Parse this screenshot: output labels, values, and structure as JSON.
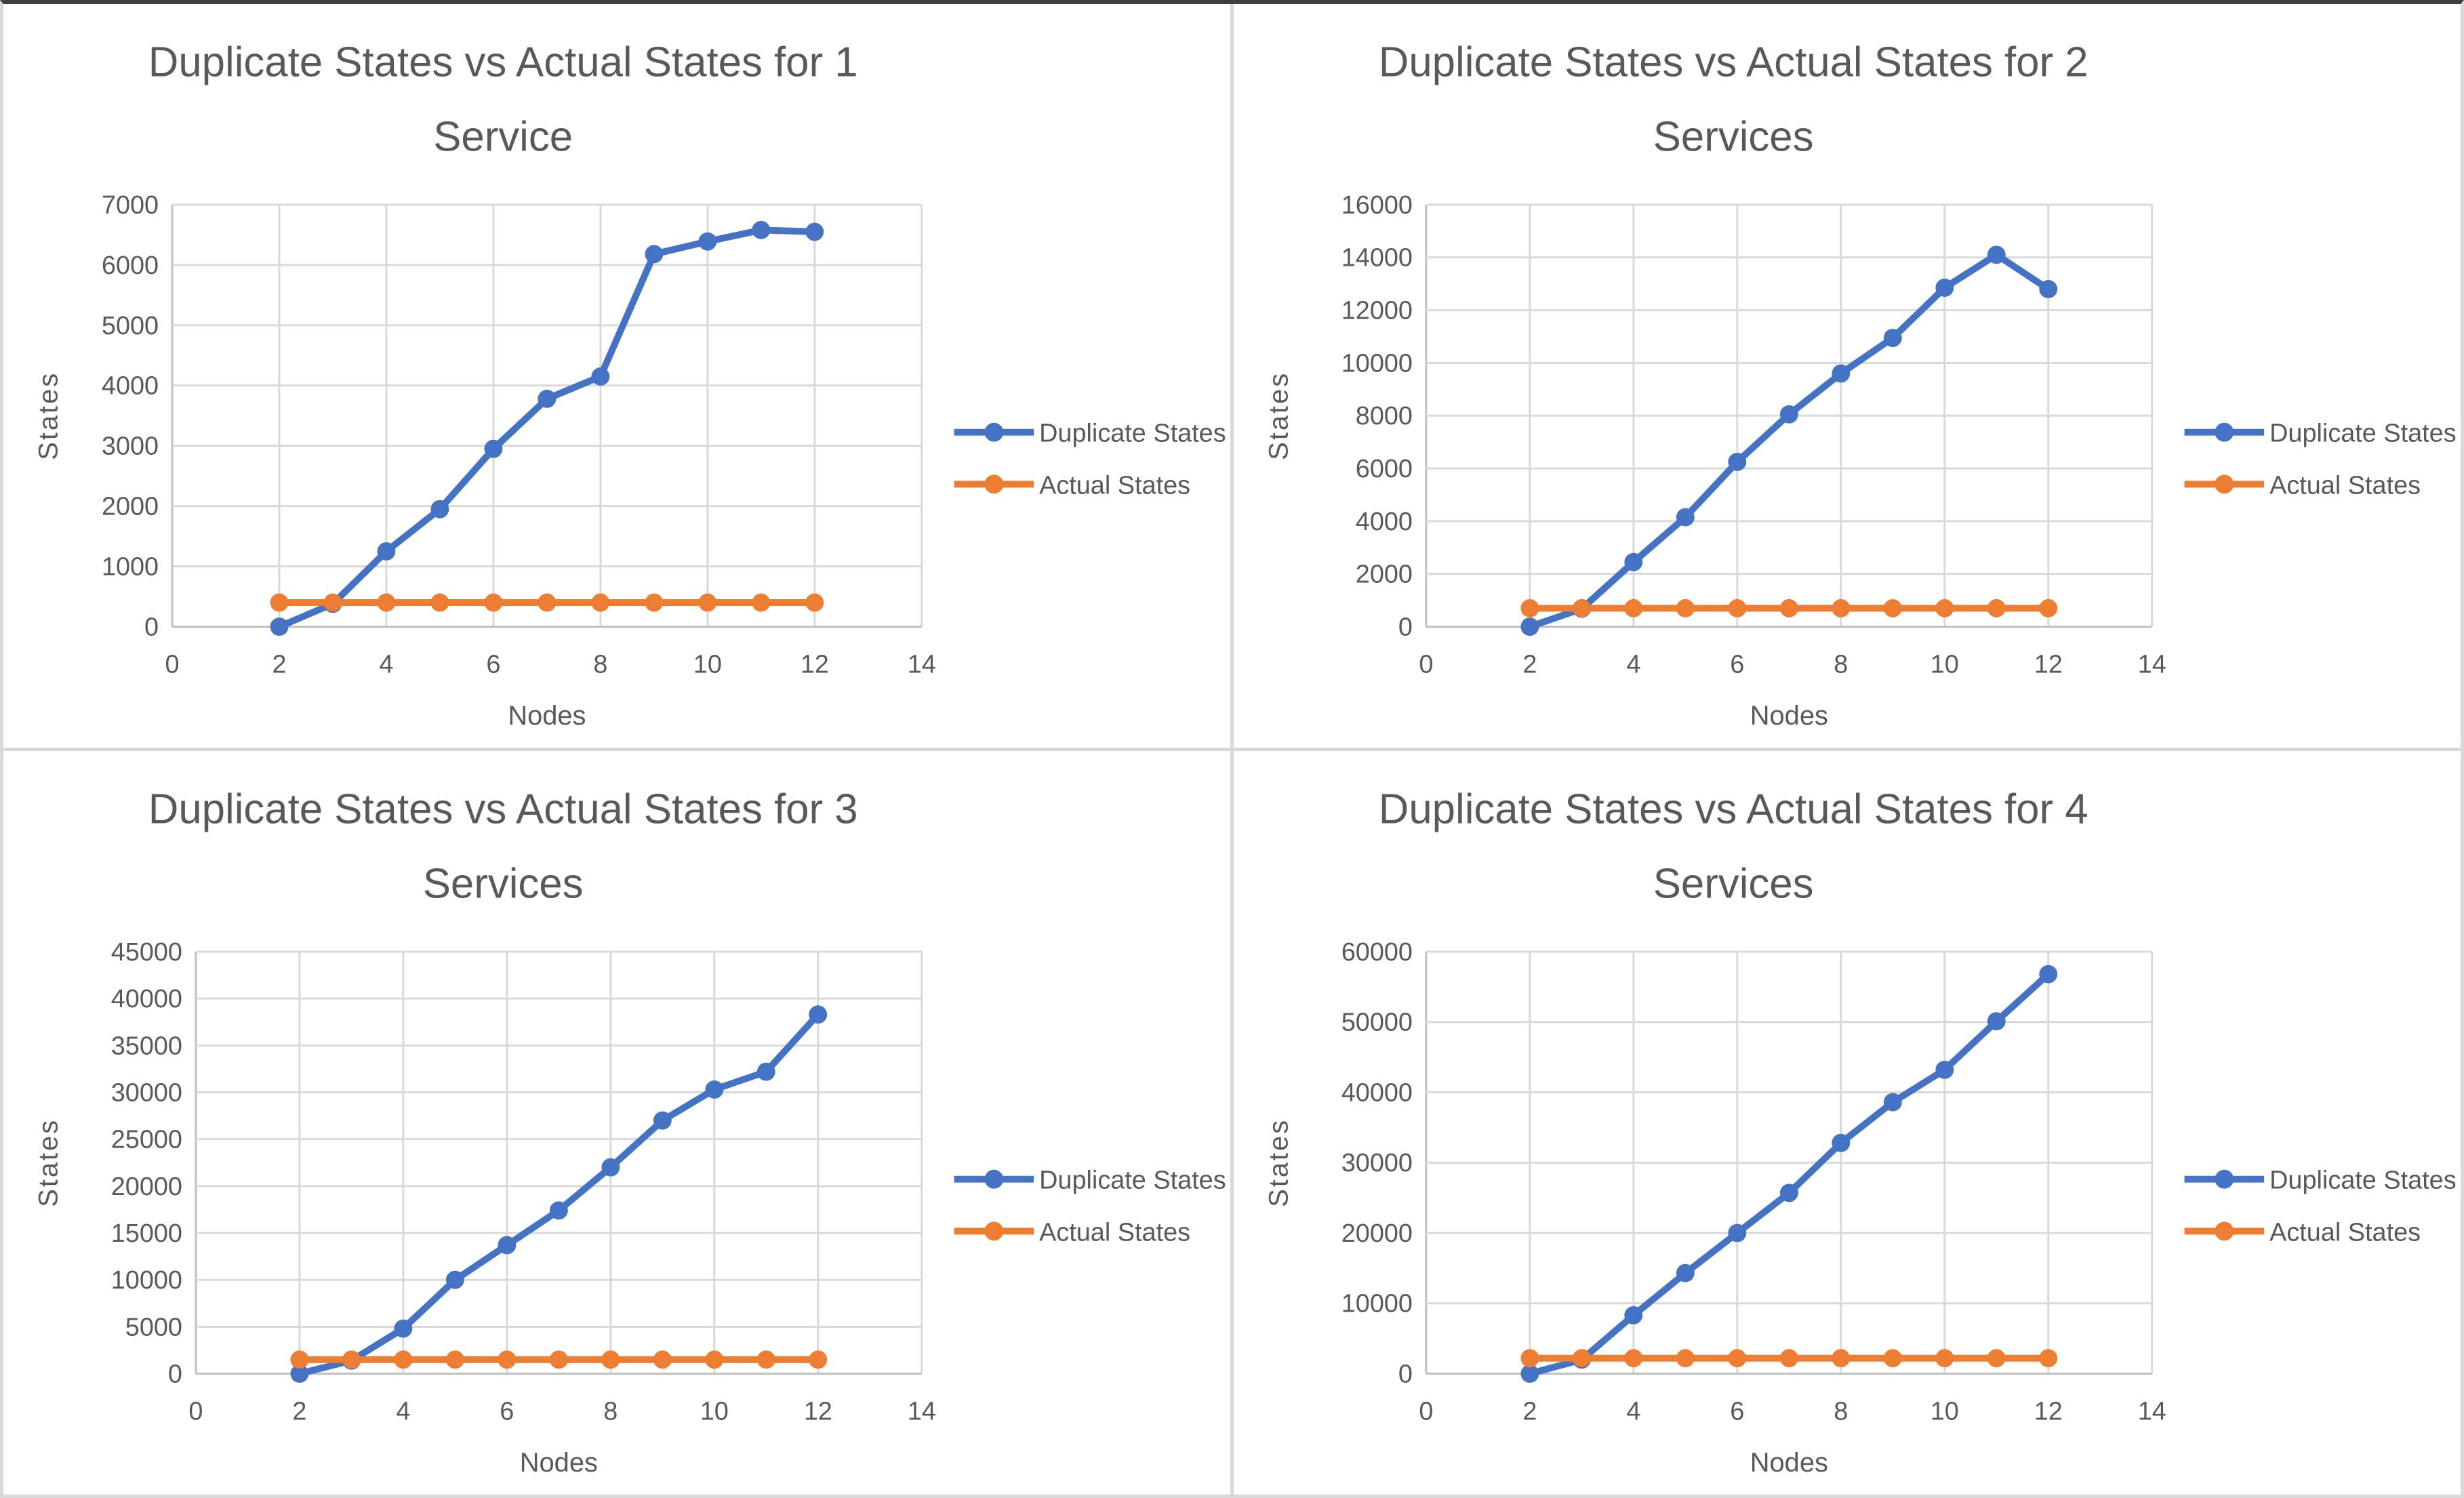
{
  "frame": {
    "top_border_color": "#3f3f3f",
    "divider_color": "#d9d9d9",
    "background": "#ffffff"
  },
  "colors": {
    "duplicate_series": "#4472C4",
    "actual_series": "#ED7D31",
    "gridline": "#D9D9D9",
    "axis_line": "#BFBFBF",
    "text": "#595959"
  },
  "chart_data": [
    {
      "type": "line",
      "title_line1": "Duplicate States vs Actual States for 1",
      "title_line2": "Service",
      "xlabel": "Nodes",
      "ylabel": "States",
      "xlim": [
        0,
        14
      ],
      "xtick_step": 2,
      "ylim": [
        0,
        7000
      ],
      "ytick_step": 1000,
      "grid": true,
      "legend_position": "right",
      "x": [
        2,
        3,
        4,
        5,
        6,
        7,
        8,
        9,
        10,
        11,
        12
      ],
      "series": [
        {
          "name": "Duplicate States",
          "values": [
            0,
            380,
            1250,
            1950,
            2950,
            3780,
            4150,
            6180,
            6390,
            6580,
            6550
          ]
        },
        {
          "name": "Actual States",
          "values": [
            400,
            400,
            400,
            400,
            400,
            400,
            400,
            400,
            400,
            400,
            400
          ]
        }
      ]
    },
    {
      "type": "line",
      "title_line1": "Duplicate States vs Actual States for 2",
      "title_line2": "Services",
      "xlabel": "Nodes",
      "ylabel": "States",
      "xlim": [
        0,
        14
      ],
      "xtick_step": 2,
      "ylim": [
        0,
        16000
      ],
      "ytick_step": 2000,
      "grid": true,
      "legend_position": "right",
      "x": [
        2,
        3,
        4,
        5,
        6,
        7,
        8,
        9,
        10,
        11,
        12
      ],
      "series": [
        {
          "name": "Duplicate States",
          "values": [
            0,
            680,
            2450,
            4150,
            6250,
            8050,
            9600,
            10950,
            12850,
            14100,
            12800
          ]
        },
        {
          "name": "Actual States",
          "values": [
            700,
            700,
            700,
            700,
            700,
            700,
            700,
            700,
            700,
            700,
            700
          ]
        }
      ]
    },
    {
      "type": "line",
      "title_line1": "Duplicate States vs Actual States for 3",
      "title_line2": "Services",
      "xlabel": "Nodes",
      "ylabel": "States",
      "xlim": [
        0,
        14
      ],
      "xtick_step": 2,
      "ylim": [
        0,
        45000
      ],
      "ytick_step": 5000,
      "grid": true,
      "legend_position": "right",
      "x": [
        2,
        3,
        4,
        5,
        6,
        7,
        8,
        9,
        10,
        11,
        12
      ],
      "series": [
        {
          "name": "Duplicate States",
          "values": [
            0,
            1400,
            4800,
            10000,
            13700,
            17400,
            22000,
            27000,
            30300,
            32200,
            38300
          ]
        },
        {
          "name": "Actual States",
          "values": [
            1500,
            1500,
            1500,
            1500,
            1500,
            1500,
            1500,
            1500,
            1500,
            1500,
            1500
          ]
        }
      ]
    },
    {
      "type": "line",
      "title_line1": "Duplicate States vs Actual States for 4",
      "title_line2": "Services",
      "xlabel": "Nodes",
      "ylabel": "States",
      "xlim": [
        0,
        14
      ],
      "xtick_step": 2,
      "ylim": [
        0,
        60000
      ],
      "ytick_step": 10000,
      "grid": true,
      "legend_position": "right",
      "x": [
        2,
        3,
        4,
        5,
        6,
        7,
        8,
        9,
        10,
        11,
        12
      ],
      "series": [
        {
          "name": "Duplicate States",
          "values": [
            0,
            2000,
            8300,
            14300,
            20000,
            25700,
            32800,
            38600,
            43200,
            50100,
            56800
          ]
        },
        {
          "name": "Actual States",
          "values": [
            2200,
            2200,
            2200,
            2200,
            2200,
            2200,
            2200,
            2200,
            2200,
            2200,
            2200
          ]
        }
      ]
    }
  ]
}
